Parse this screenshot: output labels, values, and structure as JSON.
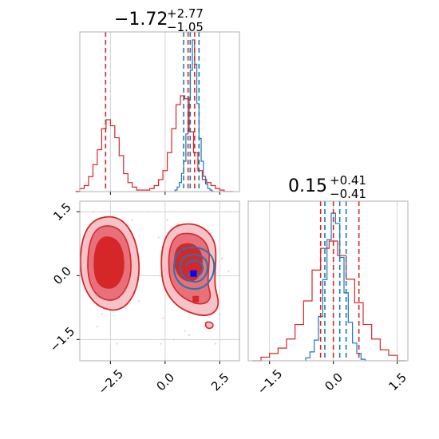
{
  "colors": {
    "red": "#d62728",
    "blue": "#1f77b4",
    "red_fill": "#e8707a",
    "red_fill_light": "#f6c3c8"
  },
  "titles": {
    "top": {
      "base": "−1.72",
      "plus": "+2.77",
      "minus": "−1.05"
    },
    "right": {
      "base": "0.15",
      "plus": "+0.41",
      "minus": "−0.41"
    }
  },
  "chart_data": [
    {
      "type": "histogram",
      "panel": "top-left marginal",
      "x_range": [
        -3.9,
        3.4
      ],
      "series": [
        {
          "color": "#d62728",
          "bins_x": [
            -4.0,
            -3.8,
            -3.6,
            -3.4,
            -3.2,
            -3.0,
            -2.8,
            -2.6,
            -2.4,
            -2.2,
            -2.0,
            -1.8,
            -1.6,
            -1.4,
            -1.2,
            -1.0,
            -0.8,
            -0.6,
            -0.4,
            -0.2,
            0.0,
            0.2,
            0.4,
            0.6,
            0.8,
            1.0,
            1.2,
            1.4,
            1.6,
            1.8,
            2.0,
            2.2,
            2.4,
            2.6,
            2.8,
            3.0
          ],
          "values": [
            0.0,
            0.01,
            0.02,
            0.05,
            0.09,
            0.14,
            0.21,
            0.24,
            0.22,
            0.18,
            0.12,
            0.06,
            0.03,
            0.015,
            0.005,
            0.005,
            0.005,
            0.01,
            0.02,
            0.04,
            0.07,
            0.13,
            0.21,
            0.29,
            0.32,
            0.31,
            0.2,
            0.13,
            0.07,
            0.04,
            0.03,
            0.02,
            0.01,
            0.005,
            0.0,
            0.0
          ]
        },
        {
          "color": "#1f77b4",
          "bins_x": [
            0.5,
            0.6,
            0.7,
            0.8,
            0.9,
            1.0,
            1.1,
            1.2,
            1.3,
            1.4,
            1.5,
            1.6,
            1.7,
            1.8,
            1.9,
            2.0,
            2.1,
            2.2
          ],
          "values": [
            0.01,
            0.03,
            0.06,
            0.12,
            0.2,
            0.38,
            0.62,
            0.8,
            1.0,
            0.84,
            0.58,
            0.35,
            0.2,
            0.1,
            0.05,
            0.02,
            0.01,
            0.0
          ]
        }
      ],
      "quantile_lines": {
        "red": [
          -2.72,
          1.05,
          1.35
        ],
        "blue": [
          0.85,
          1.15,
          1.55
        ]
      }
    },
    {
      "type": "contour",
      "panel": "bottom-left 2D",
      "x_range": [
        -3.9,
        3.4
      ],
      "y_range": [
        -2.0,
        1.75
      ],
      "x_ticks": [
        "−2.5",
        "0.0",
        "2.5"
      ],
      "y_ticks": [
        "−1.5",
        "0.0",
        "1.5"
      ],
      "markers": [
        {
          "color": "#d62728",
          "x": -2.7,
          "y": 0.2
        },
        {
          "color": "#d62728",
          "x": 0.9,
          "y": 0.15
        },
        {
          "color": "#d62728",
          "x": 1.4,
          "y": -0.55
        },
        {
          "color": "#0000ff",
          "x": 1.3,
          "y": 0.05
        }
      ]
    },
    {
      "type": "histogram",
      "panel": "bottom-right marginal",
      "x_range": [
        -2.0,
        1.75
      ],
      "x_ticks": [
        "−1.5",
        "0.0",
        "1.5"
      ],
      "series": [
        {
          "color": "#d62728",
          "bins_x": [
            -1.8,
            -1.6,
            -1.4,
            -1.2,
            -1.0,
            -0.8,
            -0.6,
            -0.4,
            -0.2,
            0.0,
            0.2,
            0.4,
            0.6,
            0.8,
            1.0,
            1.2,
            1.4,
            1.6
          ],
          "values": [
            0.0,
            0.02,
            0.04,
            0.07,
            0.12,
            0.2,
            0.33,
            0.5,
            0.62,
            0.66,
            0.58,
            0.45,
            0.32,
            0.2,
            0.12,
            0.06,
            0.03,
            0.0
          ]
        },
        {
          "color": "#1f77b4",
          "bins_x": [
            -0.6,
            -0.5,
            -0.4,
            -0.3,
            -0.2,
            -0.1,
            0.0,
            0.1,
            0.2,
            0.3,
            0.4,
            0.5,
            0.6,
            0.7
          ],
          "values": [
            0.02,
            0.06,
            0.14,
            0.3,
            0.55,
            0.82,
            1.0,
            0.93,
            0.7,
            0.46,
            0.26,
            0.12,
            0.05,
            0.01
          ]
        }
      ],
      "quantile_lines": {
        "red": [
          -0.3,
          0.0,
          0.6
        ],
        "blue": [
          -0.2,
          0.15,
          0.3
        ]
      }
    }
  ]
}
